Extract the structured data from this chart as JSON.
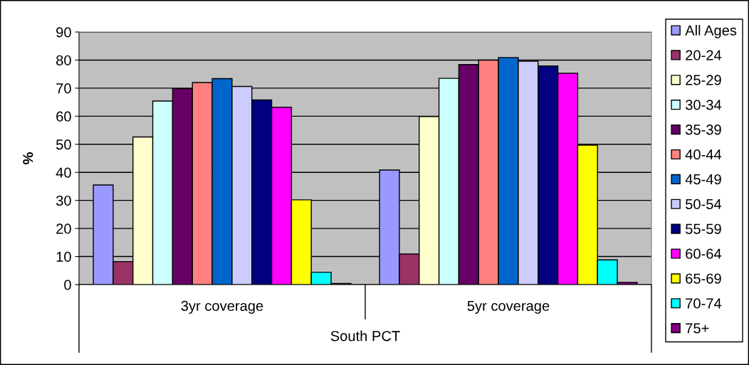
{
  "chart_data": {
    "type": "bar",
    "categories": [
      "3yr coverage",
      "5yr coverage"
    ],
    "xlabel": "South PCT",
    "ylabel": "%",
    "ylim": [
      0,
      90
    ],
    "yticks": [
      0,
      10,
      20,
      30,
      40,
      50,
      60,
      70,
      80,
      90
    ],
    "grid": "y",
    "legend": "right",
    "series": [
      {
        "name": "All Ages",
        "color": "#9999ff",
        "values": [
          35.5,
          40.8
        ]
      },
      {
        "name": "20-24",
        "color": "#993366",
        "values": [
          8.2,
          10.9
        ]
      },
      {
        "name": "25-29",
        "color": "#ffffcc",
        "values": [
          52.6,
          59.9
        ]
      },
      {
        "name": "30-34",
        "color": "#ccffff",
        "values": [
          65.4,
          73.5
        ]
      },
      {
        "name": "35-39",
        "color": "#660066",
        "values": [
          69.8,
          78.4
        ]
      },
      {
        "name": "40-44",
        "color": "#ff8080",
        "values": [
          72.0,
          80.0
        ]
      },
      {
        "name": "45-49",
        "color": "#0066cc",
        "values": [
          73.4,
          80.9
        ]
      },
      {
        "name": "50-54",
        "color": "#ccccff",
        "values": [
          70.6,
          79.6
        ]
      },
      {
        "name": "55-59",
        "color": "#000080",
        "values": [
          65.8,
          77.9
        ]
      },
      {
        "name": "60-64",
        "color": "#ff00ff",
        "values": [
          63.2,
          75.3
        ]
      },
      {
        "name": "65-69",
        "color": "#ffff00",
        "values": [
          30.2,
          49.7
        ]
      },
      {
        "name": "70-74",
        "color": "#00ffff",
        "values": [
          4.4,
          8.8
        ]
      },
      {
        "name": "75+",
        "color": "#800080",
        "values": [
          0.4,
          0.8
        ]
      }
    ]
  }
}
